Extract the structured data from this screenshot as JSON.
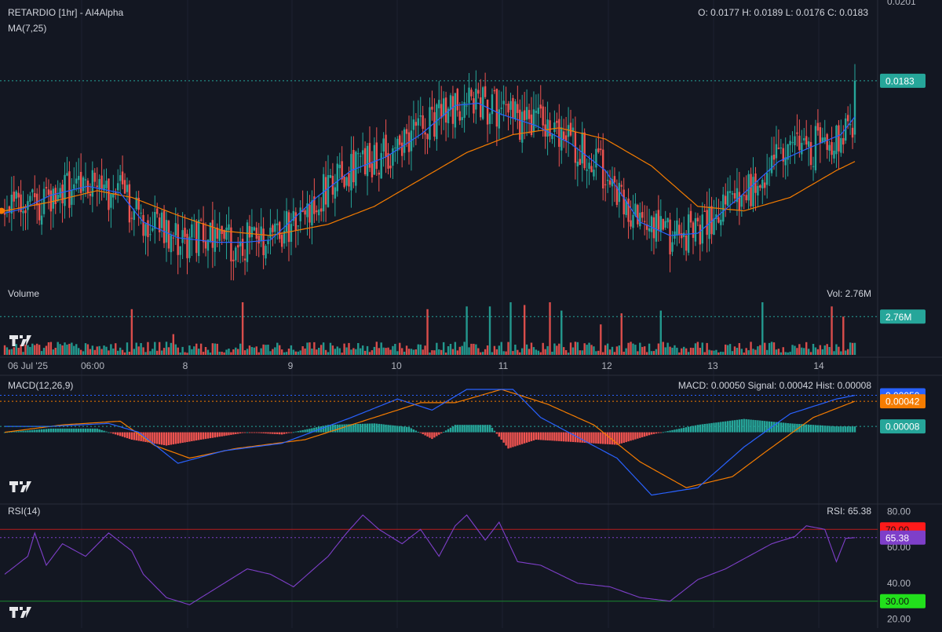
{
  "header": {
    "title": "RETARDIO [1hr] - AI4Alpha",
    "ma_label": "MA(7,25)",
    "ohlc": "O: 0.0177 H: 0.0189 L: 0.0176 C: 0.0183"
  },
  "volume_panel": {
    "label": "Volume",
    "readout": "Vol: 2.76M"
  },
  "macd_panel": {
    "label": "MACD(12,26,9)",
    "readout": "MACD: 0.00050 Signal: 0.00042 Hist: 0.00008"
  },
  "rsi_panel": {
    "label": "RSI(14)",
    "readout": "RSI: 65.38"
  },
  "colors": {
    "background": "#131722",
    "up": "#26a69a",
    "down": "#ef5350",
    "ma_fast": "#2962ff",
    "ma_slow": "#f57c00",
    "macd": "#2962ff",
    "signal": "#f57c00",
    "rsi": "#7e3fc9"
  },
  "chart_data": [
    {
      "type": "candlestick",
      "title": "RETARDIO [1hr] - AI4Alpha",
      "ylim": [
        0.0138,
        0.0201
      ],
      "y_tick_labels": [
        "0.0201"
      ],
      "x_tick_labels": [
        "06 Jul '25",
        "06:00",
        "8",
        "9",
        "10",
        "11",
        "12",
        "13",
        "14"
      ],
      "last_value_label": "0.0183",
      "series": [
        {
          "name": "MA(7)",
          "anchors": [
            [
              0,
              0.01535
            ],
            [
              8,
              0.01545
            ],
            [
              20,
              0.01575
            ],
            [
              36,
              0.01595
            ],
            [
              50,
              0.0158
            ],
            [
              60,
              0.01515
            ],
            [
              75,
              0.0148
            ],
            [
              92,
              0.0147
            ],
            [
              104,
              0.0147
            ],
            [
              115,
              0.01475
            ],
            [
              135,
              0.0157
            ],
            [
              150,
              0.0163
            ],
            [
              165,
              0.0166
            ],
            [
              180,
              0.0171
            ],
            [
              195,
              0.01775
            ],
            [
              205,
              0.0178
            ],
            [
              215,
              0.01755
            ],
            [
              230,
              0.0173
            ],
            [
              245,
              0.0169
            ],
            [
              260,
              0.0163
            ],
            [
              275,
              0.01515
            ],
            [
              288,
              0.01485
            ],
            [
              300,
              0.0149
            ],
            [
              318,
              0.0157
            ],
            [
              335,
              0.0165
            ],
            [
              348,
              0.0168
            ],
            [
              362,
              0.0171
            ],
            [
              368,
              0.0175
            ]
          ]
        },
        {
          "name": "MA(25)",
          "anchors": [
            [
              0,
              0.0154
            ],
            [
              20,
              0.0156
            ],
            [
              40,
              0.01585
            ],
            [
              55,
              0.0157
            ],
            [
              75,
              0.0153
            ],
            [
              95,
              0.01495
            ],
            [
              115,
              0.01485
            ],
            [
              140,
              0.0151
            ],
            [
              160,
              0.0155
            ],
            [
              180,
              0.0161
            ],
            [
              200,
              0.0167
            ],
            [
              220,
              0.0171
            ],
            [
              240,
              0.01725
            ],
            [
              260,
              0.017
            ],
            [
              280,
              0.0164
            ],
            [
              300,
              0.0155
            ],
            [
              320,
              0.0154
            ],
            [
              340,
              0.0157
            ],
            [
              360,
              0.0163
            ],
            [
              368,
              0.0165
            ]
          ]
        }
      ]
    },
    {
      "type": "bar",
      "title": "Volume",
      "value_unit": "M",
      "ylim": [
        0,
        3.8
      ],
      "last_value_label": "2.76M",
      "bars_by_index": {
        "55": 3.3,
        "73": 1.5,
        "103": 5.0,
        "183": 3.3,
        "200": 3.5,
        "210": 3.5,
        "219": 4.2,
        "225": 3.6,
        "236": 4.2,
        "241": 3.2,
        "258": 2.2,
        "267": 3.0,
        "284": 3.2,
        "328": 5.0,
        "358": 3.5,
        "363": 2.76
      }
    },
    {
      "type": "line",
      "title": "MACD(12,26,9)",
      "ylim": [
        -0.00095,
        0.00075
      ],
      "badges": [
        "0.00050",
        "0.00042",
        "0.00008"
      ],
      "series": [
        {
          "name": "MACD",
          "anchors": [
            [
              0,
              8e-05
            ],
            [
              20,
              8e-05
            ],
            [
              45,
              0.00012
            ],
            [
              58,
              0.0
            ],
            [
              75,
              -0.00042
            ],
            [
              95,
              -0.00025
            ],
            [
              120,
              -0.00015
            ],
            [
              150,
              0.0002
            ],
            [
              170,
              0.00045
            ],
            [
              185,
              0.0003
            ],
            [
              200,
              0.00058
            ],
            [
              220,
              0.00058
            ],
            [
              232,
              0.0002
            ],
            [
              250,
              -0.0001
            ],
            [
              265,
              -0.00035
            ],
            [
              280,
              -0.00085
            ],
            [
              300,
              -0.00075
            ],
            [
              320,
              -0.0002
            ],
            [
              340,
              0.00025
            ],
            [
              360,
              0.00045
            ],
            [
              368,
              0.0005
            ]
          ]
        },
        {
          "name": "Signal",
          "anchors": [
            [
              0,
              0.0
            ],
            [
              25,
              0.0001
            ],
            [
              50,
              0.00015
            ],
            [
              65,
              -0.00018
            ],
            [
              80,
              -0.00035
            ],
            [
              100,
              -0.00022
            ],
            [
              130,
              -0.0001
            ],
            [
              160,
              0.0002
            ],
            [
              180,
              0.0004
            ],
            [
              195,
              0.0004
            ],
            [
              215,
              0.00058
            ],
            [
              235,
              0.00038
            ],
            [
              255,
              0.0001
            ],
            [
              275,
              -0.0004
            ],
            [
              295,
              -0.00075
            ],
            [
              315,
              -0.0006
            ],
            [
              330,
              -0.00025
            ],
            [
              350,
              0.0002
            ],
            [
              368,
              0.00042
            ]
          ]
        }
      ],
      "histogram_anchors": [
        [
          0,
          0.0
        ],
        [
          20,
          5e-05
        ],
        [
          40,
          5e-05
        ],
        [
          55,
          -0.0001
        ],
        [
          70,
          -0.00018
        ],
        [
          85,
          -0.0001
        ],
        [
          105,
          0.0
        ],
        [
          120,
          -3e-05
        ],
        [
          140,
          0.0001
        ],
        [
          160,
          0.00012
        ],
        [
          175,
          7e-05
        ],
        [
          185,
          -9e-05
        ],
        [
          195,
          0.0001
        ],
        [
          210,
          0.0001
        ],
        [
          218,
          -0.00022
        ],
        [
          230,
          -0.0001
        ],
        [
          245,
          -0.00013
        ],
        [
          265,
          -0.00017
        ],
        [
          280,
          -3e-05
        ],
        [
          300,
          0.0001
        ],
        [
          320,
          0.00018
        ],
        [
          340,
          0.00012
        ],
        [
          360,
          8e-05
        ],
        [
          368,
          8e-05
        ]
      ]
    },
    {
      "type": "line",
      "title": "RSI(14)",
      "ylim": [
        15,
        85
      ],
      "y_tick_labels": [
        "80.00",
        "60.00",
        "40.00",
        "20.00"
      ],
      "badges": [
        "70.00",
        "65.38",
        "30.00"
      ],
      "series": [
        {
          "name": "RSI",
          "anchors": [
            [
              0,
              45
            ],
            [
              10,
              55
            ],
            [
              13,
              68
            ],
            [
              18,
              50
            ],
            [
              25,
              62
            ],
            [
              35,
              55
            ],
            [
              45,
              68
            ],
            [
              55,
              58
            ],
            [
              60,
              45
            ],
            [
              70,
              32
            ],
            [
              80,
              28
            ],
            [
              95,
              40
            ],
            [
              105,
              48
            ],
            [
              115,
              45
            ],
            [
              125,
              38
            ],
            [
              140,
              55
            ],
            [
              148,
              68
            ],
            [
              155,
              78
            ],
            [
              162,
              70
            ],
            [
              172,
              62
            ],
            [
              180,
              70
            ],
            [
              188,
              55
            ],
            [
              195,
              72
            ],
            [
              200,
              78
            ],
            [
              208,
              64
            ],
            [
              214,
              74
            ],
            [
              222,
              52
            ],
            [
              232,
              50
            ],
            [
              248,
              40
            ],
            [
              262,
              38
            ],
            [
              275,
              32
            ],
            [
              288,
              30
            ],
            [
              300,
              42
            ],
            [
              312,
              48
            ],
            [
              322,
              55
            ],
            [
              332,
              62
            ],
            [
              342,
              66
            ],
            [
              347,
              72
            ],
            [
              355,
              70
            ],
            [
              360,
              52
            ],
            [
              364,
              65
            ],
            [
              368,
              65.38
            ]
          ]
        }
      ]
    }
  ]
}
